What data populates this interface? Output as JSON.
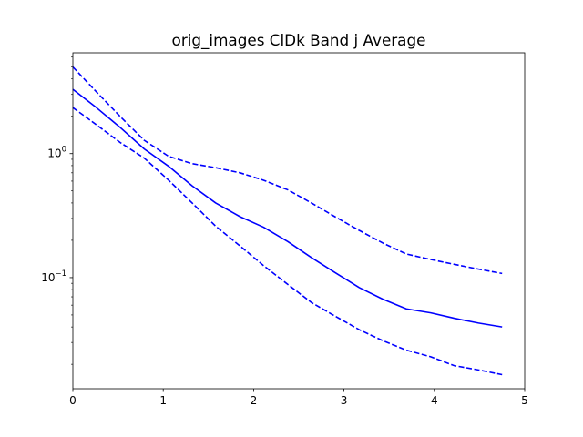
{
  "chart_data": {
    "type": "line",
    "title": "orig_images ClDk Band j Average",
    "xlabel": "",
    "ylabel": "",
    "xlim": [
      0,
      5
    ],
    "ylim": [
      0.0127,
      6.5
    ],
    "yscale": "log",
    "grid": false,
    "legend": "none",
    "x_ticks": [
      {
        "value": 0,
        "label": "0"
      },
      {
        "value": 1,
        "label": "1"
      },
      {
        "value": 2,
        "label": "2"
      },
      {
        "value": 3,
        "label": "3"
      },
      {
        "value": 4,
        "label": "4"
      },
      {
        "value": 5,
        "label": "5"
      }
    ],
    "y_ticks": [
      {
        "value": 1,
        "base": "10",
        "exp": "0"
      },
      {
        "value": 0.1,
        "base": "10",
        "exp": "−1"
      }
    ],
    "color": "#0000ff",
    "x": [
      0,
      0.26,
      0.53,
      0.79,
      1.06,
      1.32,
      1.58,
      1.85,
      2.11,
      2.38,
      2.64,
      2.9,
      3.17,
      3.43,
      3.69,
      3.96,
      4.22,
      4.49,
      4.75
    ],
    "series": [
      {
        "style": "dashed",
        "values": [
          5.0,
          3.15,
          1.97,
          1.28,
          0.95,
          0.83,
          0.77,
          0.7,
          0.61,
          0.51,
          0.4,
          0.31,
          0.24,
          0.19,
          0.155,
          0.14,
          0.128,
          0.117,
          0.108
        ]
      },
      {
        "style": "solid",
        "values": [
          3.3,
          2.35,
          1.61,
          1.09,
          0.79,
          0.55,
          0.4,
          0.31,
          0.255,
          0.195,
          0.145,
          0.11,
          0.083,
          0.067,
          0.056,
          0.052,
          0.047,
          0.043,
          0.04
        ]
      },
      {
        "style": "dashed",
        "values": [
          2.35,
          1.71,
          1.22,
          0.92,
          0.61,
          0.4,
          0.26,
          0.18,
          0.125,
          0.088,
          0.063,
          0.049,
          0.038,
          0.031,
          0.026,
          0.023,
          0.0195,
          0.018,
          0.0165
        ]
      }
    ]
  }
}
